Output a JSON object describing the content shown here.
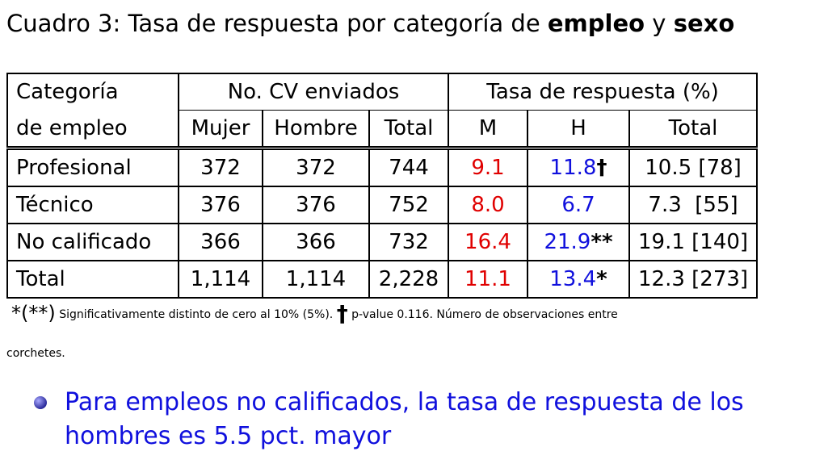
{
  "title": {
    "prefix": "Cuadro 3: Tasa de respuesta por categoría de",
    "bold1": "empleo",
    "mid": "y",
    "bold2": "sexo"
  },
  "table": {
    "header1": {
      "cat": "Categoría",
      "cv": "No. CV enviados",
      "tasa": "Tasa de respuesta (%)"
    },
    "header2": {
      "cat": "de empleo",
      "mujer": "Mujer",
      "hombre": "Hombre",
      "total": "Total",
      "m": "M",
      "h": "H",
      "tasa_total": "Total"
    },
    "rows": [
      {
        "cat": "Profesional",
        "mujer": "372",
        "hombre": "372",
        "total": "744",
        "m": "9.1",
        "h": "11.8",
        "h_mark": "†",
        "tasa_total": "10.5 [78]"
      },
      {
        "cat": "Técnico",
        "mujer": "376",
        "hombre": "376",
        "total": "752",
        "m": "8.0",
        "h": "6.7",
        "h_mark": "",
        "tasa_total": "7.3  [55]"
      },
      {
        "cat": "No calificado",
        "mujer": "366",
        "hombre": "366",
        "total": "732",
        "m": "16.4",
        "h": "21.9",
        "h_mark": "**",
        "tasa_total": "19.1 [140]"
      },
      {
        "cat": "Total",
        "mujer": "1,114",
        "hombre": "1,114",
        "total": "2,228",
        "m": "11.1",
        "h": "13.4",
        "h_mark": "*",
        "tasa_total": "12.3 [273]"
      }
    ]
  },
  "note": {
    "sym_star": "*",
    "sym_paren": "(**)",
    "text1": "Significativamente distinto de cero al 10% (5%).",
    "dagger": "†",
    "text2": "p-value 0.116. Número de observaciones entre",
    "text3": "corchetes."
  },
  "bullet": "Para empleos no calificados, la tasa de respuesta de los hombres es 5.5 pct. mayor",
  "colors": {
    "women": "#e00000",
    "men": "#1010dd",
    "bullet": "#1010dd"
  }
}
